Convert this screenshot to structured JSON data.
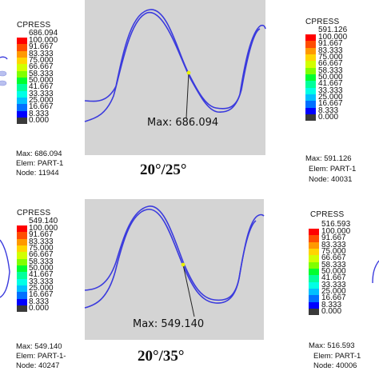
{
  "legend_title": "CPRESS",
  "scale_levels": [
    "100.000",
    "91.667",
    "83.333",
    "75.000",
    "66.667",
    "58.333",
    "50.000",
    "41.667",
    "33.333",
    "25.000",
    "16.667",
    "8.333",
    "0.000"
  ],
  "scale_colors": [
    "#ff0000",
    "#ff4d00",
    "#ff9900",
    "#ffd500",
    "#d2ff00",
    "#80ff00",
    "#00ff30",
    "#00ff9c",
    "#00ffe6",
    "#00c0ff",
    "#0070ff",
    "#0000ff",
    "#3a3a3a"
  ],
  "panels": [
    {
      "legend_max": "686.094",
      "info_max": "Max: 686.094",
      "info_elem": "Elem: PART-1",
      "info_node": "Node: 11944",
      "plot_label": "Max: 686.094",
      "caption": "20°/25°"
    },
    {
      "legend_max": "591.126",
      "info_max": "Max: 591.126",
      "info_elem": "Elem: PART-1",
      "info_node": "Node: 40031"
    },
    {
      "legend_max": "549.140",
      "info_max": "Max: 549.140",
      "info_elem": "Elem: PART-1-",
      "info_node": "Node: 40247",
      "plot_label": "Max: 549.140",
      "caption": "20°/35°"
    },
    {
      "legend_max": "516.593",
      "info_max": "Max: 516.593",
      "info_elem": "Elem: PART-1",
      "info_node": "Node: 40006"
    }
  ],
  "colors": {
    "plot_bg": "#d4d4d4",
    "curve": "#3b3bdd",
    "max_marker": "#e8f000"
  }
}
